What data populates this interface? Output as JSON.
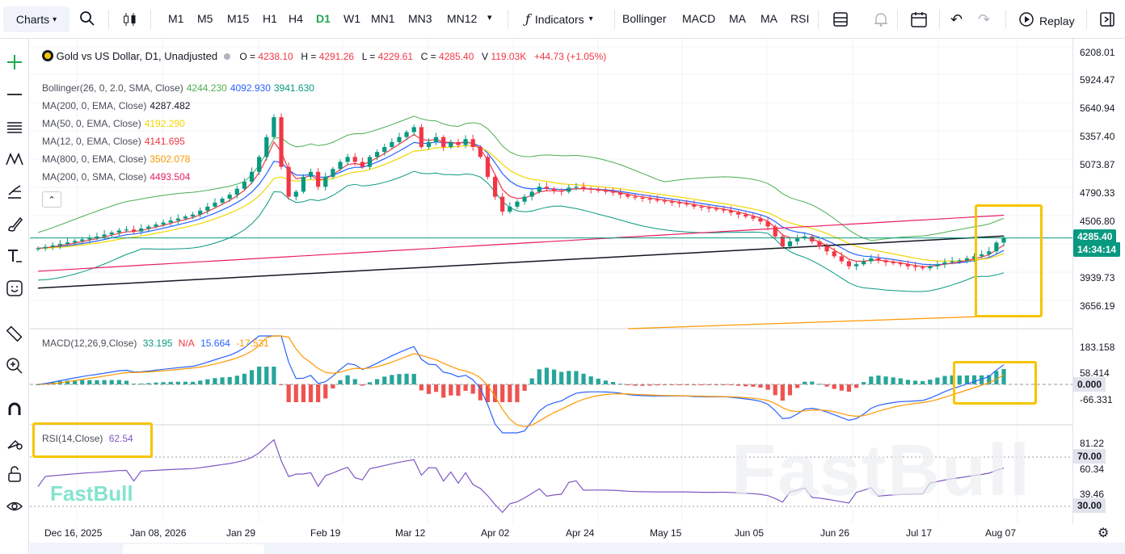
{
  "toolbar": {
    "charts_label": "Charts",
    "timeframes": [
      "M1",
      "M5",
      "M15",
      "H1",
      "H4",
      "D1",
      "W1",
      "MN1",
      "MN3",
      "MN12"
    ],
    "active_timeframe": "D1",
    "indicators_label": "Indicators",
    "quick_indicators": [
      "Bollinger",
      "MACD",
      "MA",
      "MA",
      "RSI"
    ],
    "replay_label": "Replay"
  },
  "symbol": {
    "title": "Gold vs US Dollar, D1, Unadjusted",
    "o_label": "O",
    "o": "4238.10",
    "h_label": "H",
    "h": "4291.26",
    "l_label": "L",
    "l": "4229.61",
    "c_label": "C",
    "c": "4285.40",
    "v_label": "V",
    "v": "119.03K",
    "change": "+44.73 (+1.05%)"
  },
  "indicators": [
    {
      "label": "Bollinger(26, 0, 2.0, SMA, Close)",
      "values": [
        "4244.230",
        "4092.930",
        "3941.630"
      ],
      "colors": [
        "#4caf50",
        "#2962ff",
        "#089981"
      ]
    },
    {
      "label": "MA(200, 0, EMA, Close)",
      "values": [
        "4287.482"
      ],
      "colors": [
        "#131722"
      ]
    },
    {
      "label": "MA(50, 0, EMA, Close)",
      "values": [
        "4192.290"
      ],
      "colors": [
        "#f2d600"
      ]
    },
    {
      "label": "MA(12, 0, EMA, Close)",
      "values": [
        "4141.695"
      ],
      "colors": [
        "#f23645"
      ]
    },
    {
      "label": "MA(800, 0, EMA, Close)",
      "values": [
        "3502.078"
      ],
      "colors": [
        "#ff9800"
      ]
    },
    {
      "label": "MA(200, 0, SMA, Close)",
      "values": [
        "4493.504"
      ],
      "colors": [
        "#e91e63"
      ]
    }
  ],
  "macd": {
    "label": "MACD(12,26,9,Close)",
    "values": [
      "33.195",
      "N/A",
      "15.664",
      "-17.531"
    ]
  },
  "rsi": {
    "label": "RSI(14,Close)",
    "value": "62.54"
  },
  "price_axis": [
    "6208.01",
    "5924.47",
    "5640.94",
    "5357.40",
    "5073.87",
    "4790.33",
    "4506.80",
    "3939.73",
    "3656.19"
  ],
  "price_tag": {
    "price": "4285.40",
    "countdown": "14:34:14"
  },
  "macd_axis": [
    "183.158",
    "58.414",
    "0.000",
    "-66.331"
  ],
  "rsi_axis": [
    "81.22",
    "70.00",
    "60.34",
    "39.46",
    "30.00"
  ],
  "time_axis": [
    "Dec 16, 2025",
    "Jan 08, 2026",
    "Jan 29",
    "Feb 19",
    "Mar 12",
    "Apr 02",
    "Apr 24",
    "May 15",
    "Jun 05",
    "Jun 26",
    "Jul 17",
    "Aug 07"
  ],
  "watermark": "FastBull",
  "colors": {
    "up": "#089981",
    "down": "#f23645",
    "highlight": "#f5c400",
    "accent": "#1fa84f"
  },
  "chart_data": {
    "type": "candlestick",
    "close": [
      4180,
      4195,
      4210,
      4225,
      4240,
      4255,
      4270,
      4285,
      4300,
      4320,
      4340,
      4360,
      4370,
      4350,
      4380,
      4400,
      4420,
      4440,
      4460,
      4480,
      4500,
      4520,
      4560,
      4600,
      4640,
      4680,
      4720,
      4780,
      4850,
      4950,
      5100,
      5300,
      5500,
      5000,
      4700,
      4750,
      4900,
      4950,
      4800,
      4900,
      4980,
      5050,
      5100,
      5050,
      5000,
      5100,
      5150,
      5200,
      5250,
      5300,
      5350,
      5400,
      5200,
      5250,
      5300,
      5200,
      5250,
      5220,
      5280,
      5200,
      5100,
      4900,
      4700,
      4550,
      4600,
      4650,
      4700,
      4750,
      4800,
      4780,
      4760,
      4750,
      4790,
      4800,
      4780,
      4770,
      4760,
      4750,
      4740,
      4720,
      4700,
      4690,
      4680,
      4670,
      4660,
      4650,
      4640,
      4630,
      4620,
      4600,
      4590,
      4580,
      4570,
      4560,
      4540,
      4520,
      4500,
      4480,
      4450,
      4400,
      4300,
      4200,
      4250,
      4280,
      4300,
      4250,
      4200,
      4150,
      4100,
      4050,
      4000,
      4020,
      4050,
      4080,
      4060,
      4040,
      4030,
      4020,
      4000,
      3990,
      3980,
      4000,
      4020,
      4040,
      4050,
      4060,
      4080,
      4100,
      4120,
      4150,
      4238,
      4285
    ]
  }
}
